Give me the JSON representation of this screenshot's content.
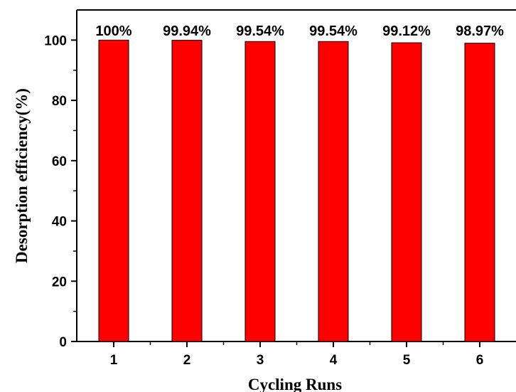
{
  "chart_data": {
    "type": "bar",
    "xlabel": "Cycling Runs",
    "ylabel": "Desorption efficiency(%)",
    "categories": [
      "1",
      "2",
      "3",
      "4",
      "5",
      "6"
    ],
    "values": [
      100,
      99.94,
      99.54,
      99.54,
      99.12,
      98.97
    ],
    "data_labels": [
      "100%",
      "99.94%",
      "99.54%",
      "99.54%",
      "99.12%",
      "98.97%"
    ],
    "yticks": [
      "0",
      "20",
      "40",
      "60",
      "80",
      "100"
    ],
    "ylim": [
      0,
      110
    ],
    "grid": false,
    "colors": {
      "bar": "#ff0000",
      "axis": "#000000"
    }
  }
}
